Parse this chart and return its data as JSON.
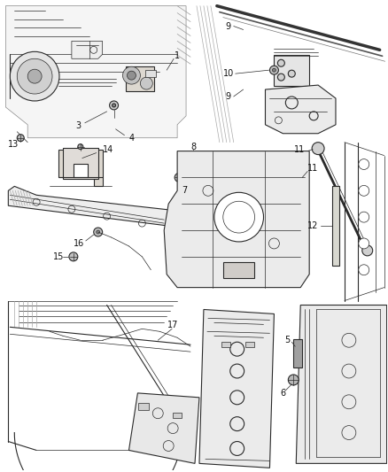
{
  "bg_color": "#ffffff",
  "fig_width": 4.38,
  "fig_height": 5.33,
  "dpi": 100,
  "line_color": "#2a2a2a",
  "label_color": "#111111",
  "label_fontsize": 7.0,
  "gray_fill": "#c8c8c8",
  "light_gray": "#e8e8e8",
  "mid_gray": "#aaaaaa",
  "dark_gray": "#555555"
}
